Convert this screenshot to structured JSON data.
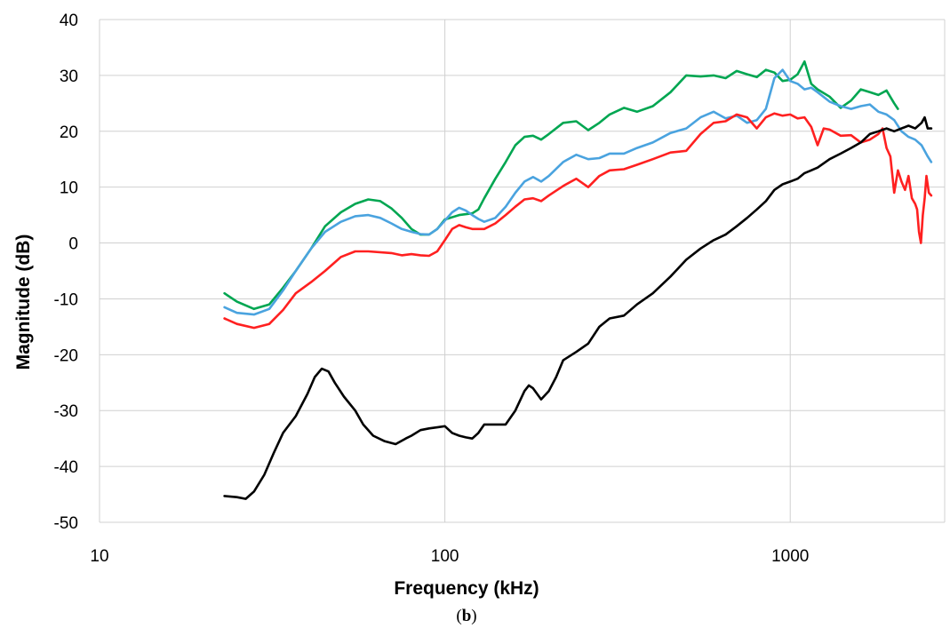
{
  "chart_data": {
    "type": "line",
    "xlabel": "Frequency (kHz)",
    "ylabel": "Magnitude (dB)",
    "caption_prefix": "(",
    "caption_letter": "b",
    "caption_suffix": ")",
    "xscale": "log",
    "xlim": [
      10,
      2800
    ],
    "ylim": [
      -50,
      40
    ],
    "xticks": [
      10,
      100,
      1000
    ],
    "xtick_labels": [
      "10",
      "100",
      "1000"
    ],
    "yticks": [
      -50,
      -40,
      -30,
      -20,
      -10,
      0,
      10,
      20,
      30,
      40
    ],
    "ytick_labels": [
      "-50",
      "-40",
      "-30",
      "-20",
      "-10",
      "0",
      "10",
      "20",
      "30",
      "40"
    ],
    "grid": true,
    "legend": "none",
    "series": [
      {
        "color": "#00a651",
        "points": [
          [
            23,
            -9
          ],
          [
            25,
            -10.5
          ],
          [
            28,
            -11.8
          ],
          [
            31,
            -11
          ],
          [
            34,
            -8
          ],
          [
            37,
            -5
          ],
          [
            41,
            -1
          ],
          [
            45,
            3
          ],
          [
            50,
            5.5
          ],
          [
            55,
            7
          ],
          [
            60,
            7.8
          ],
          [
            65,
            7.5
          ],
          [
            70,
            6.2
          ],
          [
            75,
            4.5
          ],
          [
            80,
            2.5
          ],
          [
            85,
            1.5
          ],
          [
            90,
            1.5
          ],
          [
            95,
            2.5
          ],
          [
            100,
            4.2
          ],
          [
            110,
            5
          ],
          [
            120,
            5.3
          ],
          [
            125,
            6
          ],
          [
            130,
            8
          ],
          [
            140,
            11.5
          ],
          [
            150,
            14.5
          ],
          [
            160,
            17.5
          ],
          [
            170,
            19
          ],
          [
            180,
            19.2
          ],
          [
            190,
            18.5
          ],
          [
            200,
            19.5
          ],
          [
            220,
            21.5
          ],
          [
            240,
            21.8
          ],
          [
            260,
            20.2
          ],
          [
            280,
            21.5
          ],
          [
            300,
            23
          ],
          [
            330,
            24.2
          ],
          [
            360,
            23.5
          ],
          [
            400,
            24.5
          ],
          [
            450,
            27
          ],
          [
            500,
            30
          ],
          [
            550,
            29.8
          ],
          [
            600,
            30
          ],
          [
            650,
            29.5
          ],
          [
            700,
            30.8
          ],
          [
            750,
            30.2
          ],
          [
            800,
            29.7
          ],
          [
            850,
            31
          ],
          [
            900,
            30.5
          ],
          [
            950,
            29
          ],
          [
            1000,
            29.2
          ],
          [
            1050,
            30.2
          ],
          [
            1100,
            32.5
          ],
          [
            1150,
            28.5
          ],
          [
            1200,
            27.5
          ],
          [
            1300,
            26.2
          ],
          [
            1400,
            24.2
          ],
          [
            1500,
            25.5
          ],
          [
            1600,
            27.5
          ],
          [
            1700,
            27
          ],
          [
            1800,
            26.5
          ],
          [
            1900,
            27.3
          ],
          [
            2000,
            25
          ],
          [
            2050,
            24
          ]
        ]
      },
      {
        "color": "#4aa3df",
        "points": [
          [
            23,
            -11.5
          ],
          [
            25,
            -12.5
          ],
          [
            28,
            -12.8
          ],
          [
            31,
            -11.8
          ],
          [
            34,
            -8.5
          ],
          [
            37,
            -5
          ],
          [
            41,
            -1
          ],
          [
            45,
            2
          ],
          [
            50,
            3.8
          ],
          [
            55,
            4.8
          ],
          [
            60,
            5
          ],
          [
            65,
            4.5
          ],
          [
            70,
            3.5
          ],
          [
            75,
            2.5
          ],
          [
            80,
            2
          ],
          [
            85,
            1.6
          ],
          [
            90,
            1.5
          ],
          [
            95,
            2.5
          ],
          [
            100,
            4
          ],
          [
            105,
            5.5
          ],
          [
            110,
            6.3
          ],
          [
            115,
            5.8
          ],
          [
            120,
            5
          ],
          [
            125,
            4.3
          ],
          [
            130,
            3.8
          ],
          [
            140,
            4.5
          ],
          [
            150,
            6.5
          ],
          [
            160,
            9
          ],
          [
            170,
            11
          ],
          [
            180,
            11.8
          ],
          [
            190,
            11
          ],
          [
            200,
            12
          ],
          [
            220,
            14.5
          ],
          [
            240,
            15.8
          ],
          [
            260,
            15
          ],
          [
            280,
            15.2
          ],
          [
            300,
            16
          ],
          [
            330,
            16
          ],
          [
            360,
            17
          ],
          [
            400,
            18
          ],
          [
            450,
            19.7
          ],
          [
            500,
            20.5
          ],
          [
            550,
            22.5
          ],
          [
            600,
            23.5
          ],
          [
            650,
            22.3
          ],
          [
            700,
            22.8
          ],
          [
            750,
            21.5
          ],
          [
            800,
            22
          ],
          [
            850,
            24
          ],
          [
            900,
            29.5
          ],
          [
            950,
            31
          ],
          [
            1000,
            29
          ],
          [
            1050,
            28.5
          ],
          [
            1100,
            27.5
          ],
          [
            1150,
            27.8
          ],
          [
            1200,
            27
          ],
          [
            1300,
            25.3
          ],
          [
            1400,
            24.5
          ],
          [
            1500,
            24
          ],
          [
            1600,
            24.5
          ],
          [
            1700,
            24.8
          ],
          [
            1800,
            23.5
          ],
          [
            1900,
            23
          ],
          [
            2000,
            22
          ],
          [
            2100,
            20
          ],
          [
            2200,
            19
          ],
          [
            2300,
            18.5
          ],
          [
            2400,
            17.5
          ],
          [
            2500,
            15.5
          ],
          [
            2560,
            14.5
          ]
        ]
      },
      {
        "color": "#ff2020",
        "points": [
          [
            23,
            -13.5
          ],
          [
            25,
            -14.5
          ],
          [
            28,
            -15.2
          ],
          [
            31,
            -14.5
          ],
          [
            34,
            -12
          ],
          [
            37,
            -9
          ],
          [
            41,
            -7
          ],
          [
            45,
            -5
          ],
          [
            50,
            -2.5
          ],
          [
            55,
            -1.5
          ],
          [
            60,
            -1.5
          ],
          [
            70,
            -1.8
          ],
          [
            75,
            -2.2
          ],
          [
            80,
            -2
          ],
          [
            85,
            -2.2
          ],
          [
            90,
            -2.3
          ],
          [
            95,
            -1.5
          ],
          [
            100,
            0.5
          ],
          [
            105,
            2.5
          ],
          [
            110,
            3.2
          ],
          [
            115,
            2.8
          ],
          [
            120,
            2.5
          ],
          [
            130,
            2.5
          ],
          [
            140,
            3.5
          ],
          [
            150,
            5
          ],
          [
            160,
            6.5
          ],
          [
            170,
            7.8
          ],
          [
            180,
            8
          ],
          [
            190,
            7.5
          ],
          [
            200,
            8.5
          ],
          [
            220,
            10.2
          ],
          [
            240,
            11.5
          ],
          [
            260,
            10
          ],
          [
            280,
            12
          ],
          [
            300,
            13
          ],
          [
            330,
            13.2
          ],
          [
            360,
            14
          ],
          [
            400,
            15
          ],
          [
            450,
            16.2
          ],
          [
            500,
            16.5
          ],
          [
            550,
            19.5
          ],
          [
            600,
            21.5
          ],
          [
            650,
            21.8
          ],
          [
            700,
            23
          ],
          [
            750,
            22.5
          ],
          [
            800,
            20.5
          ],
          [
            850,
            22.5
          ],
          [
            900,
            23.2
          ],
          [
            950,
            22.8
          ],
          [
            1000,
            23
          ],
          [
            1050,
            22.3
          ],
          [
            1100,
            22.5
          ],
          [
            1150,
            20.8
          ],
          [
            1200,
            17.5
          ],
          [
            1250,
            20.5
          ],
          [
            1300,
            20.3
          ],
          [
            1400,
            19.2
          ],
          [
            1500,
            19.3
          ],
          [
            1600,
            18
          ],
          [
            1700,
            18.5
          ],
          [
            1800,
            19.5
          ],
          [
            1850,
            20.5
          ],
          [
            1900,
            17
          ],
          [
            1950,
            15.5
          ],
          [
            2000,
            9
          ],
          [
            2050,
            13
          ],
          [
            2100,
            11
          ],
          [
            2150,
            9.5
          ],
          [
            2200,
            12
          ],
          [
            2250,
            8
          ],
          [
            2300,
            7
          ],
          [
            2330,
            6
          ],
          [
            2360,
            2
          ],
          [
            2390,
            0
          ],
          [
            2420,
            5
          ],
          [
            2450,
            8
          ],
          [
            2480,
            12
          ],
          [
            2520,
            9
          ],
          [
            2560,
            8.5
          ]
        ]
      },
      {
        "color": "#000000",
        "points": [
          [
            23,
            -45.3
          ],
          [
            25,
            -45.5
          ],
          [
            26.5,
            -45.8
          ],
          [
            28,
            -44.5
          ],
          [
            30,
            -41.5
          ],
          [
            32,
            -37.5
          ],
          [
            34,
            -34
          ],
          [
            37,
            -31
          ],
          [
            40,
            -27
          ],
          [
            42,
            -24
          ],
          [
            44,
            -22.5
          ],
          [
            46,
            -23
          ],
          [
            48,
            -25
          ],
          [
            51,
            -27.5
          ],
          [
            55,
            -30
          ],
          [
            58,
            -32.5
          ],
          [
            62,
            -34.5
          ],
          [
            67,
            -35.5
          ],
          [
            72,
            -36
          ],
          [
            77,
            -35
          ],
          [
            80,
            -34.5
          ],
          [
            85,
            -33.5
          ],
          [
            90,
            -33.2
          ],
          [
            95,
            -33
          ],
          [
            100,
            -32.8
          ],
          [
            105,
            -34
          ],
          [
            110,
            -34.5
          ],
          [
            115,
            -34.8
          ],
          [
            120,
            -35
          ],
          [
            125,
            -34
          ],
          [
            130,
            -32.5
          ],
          [
            140,
            -32.5
          ],
          [
            150,
            -32.5
          ],
          [
            160,
            -30
          ],
          [
            170,
            -26.5
          ],
          [
            175,
            -25.5
          ],
          [
            180,
            -26
          ],
          [
            190,
            -28
          ],
          [
            200,
            -26.5
          ],
          [
            210,
            -24
          ],
          [
            220,
            -21
          ],
          [
            240,
            -19.5
          ],
          [
            260,
            -18
          ],
          [
            280,
            -15
          ],
          [
            300,
            -13.5
          ],
          [
            330,
            -13
          ],
          [
            360,
            -11
          ],
          [
            400,
            -9
          ],
          [
            450,
            -6
          ],
          [
            500,
            -3
          ],
          [
            550,
            -1
          ],
          [
            600,
            0.5
          ],
          [
            650,
            1.5
          ],
          [
            700,
            3
          ],
          [
            750,
            4.5
          ],
          [
            800,
            6
          ],
          [
            850,
            7.5
          ],
          [
            900,
            9.5
          ],
          [
            950,
            10.5
          ],
          [
            1000,
            11
          ],
          [
            1050,
            11.5
          ],
          [
            1100,
            12.5
          ],
          [
            1150,
            13
          ],
          [
            1200,
            13.5
          ],
          [
            1300,
            15
          ],
          [
            1400,
            16
          ],
          [
            1500,
            17
          ],
          [
            1600,
            18
          ],
          [
            1700,
            19.5
          ],
          [
            1800,
            20
          ],
          [
            1900,
            20.5
          ],
          [
            2000,
            20
          ],
          [
            2100,
            20.5
          ],
          [
            2200,
            21
          ],
          [
            2300,
            20.5
          ],
          [
            2400,
            21.5
          ],
          [
            2450,
            22.5
          ],
          [
            2500,
            20.5
          ],
          [
            2560,
            20.5
          ]
        ]
      }
    ]
  }
}
